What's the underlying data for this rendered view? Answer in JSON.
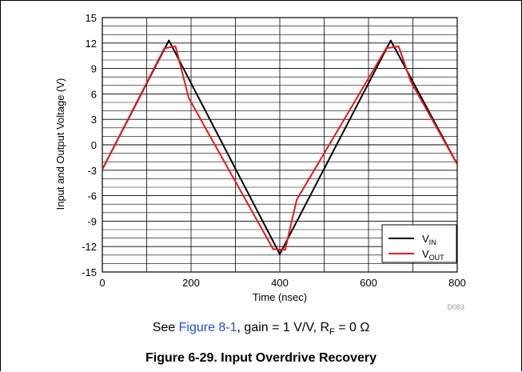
{
  "chart_data": {
    "type": "line",
    "xlabel": "Time (nsec)",
    "ylabel": "Input and Output Voltage (V)",
    "xlim": [
      0,
      800
    ],
    "ylim": [
      -15,
      15
    ],
    "x_ticks": [
      "0",
      "200",
      "400",
      "600",
      "800"
    ],
    "y_ticks": [
      "15",
      "12",
      "9",
      "6",
      "3",
      "0",
      "-3",
      "-6",
      "-9",
      "-12",
      "-15"
    ],
    "grid": true,
    "legend_position": "bottom-right",
    "series": [
      {
        "name_main": "V",
        "name_sub": "IN",
        "color": "#000000",
        "points": [
          [
            0,
            -2.9
          ],
          [
            150,
            12.3
          ],
          [
            400,
            -12.9
          ],
          [
            650,
            12.3
          ],
          [
            800,
            -2.3
          ]
        ]
      },
      {
        "name_main": "V",
        "name_sub": "OUT",
        "color": "#e31a1c",
        "points": [
          [
            0,
            -2.9
          ],
          [
            140,
            11.4
          ],
          [
            165,
            11.6
          ],
          [
            195,
            5.5
          ],
          [
            385,
            -12.3
          ],
          [
            412,
            -12.4
          ],
          [
            438,
            -6.5
          ],
          [
            640,
            11.4
          ],
          [
            668,
            11.6
          ],
          [
            695,
            7.5
          ],
          [
            800,
            -2.3
          ]
        ]
      }
    ]
  },
  "watermark": "D083",
  "note": {
    "prefix": "See ",
    "link": "Figure 8-1",
    "middle": ", gain = 1 V/V, R",
    "sub": "F",
    "suffix": " = 0 Ω"
  },
  "caption": "Figure 6-29. Input Overdrive Recovery"
}
